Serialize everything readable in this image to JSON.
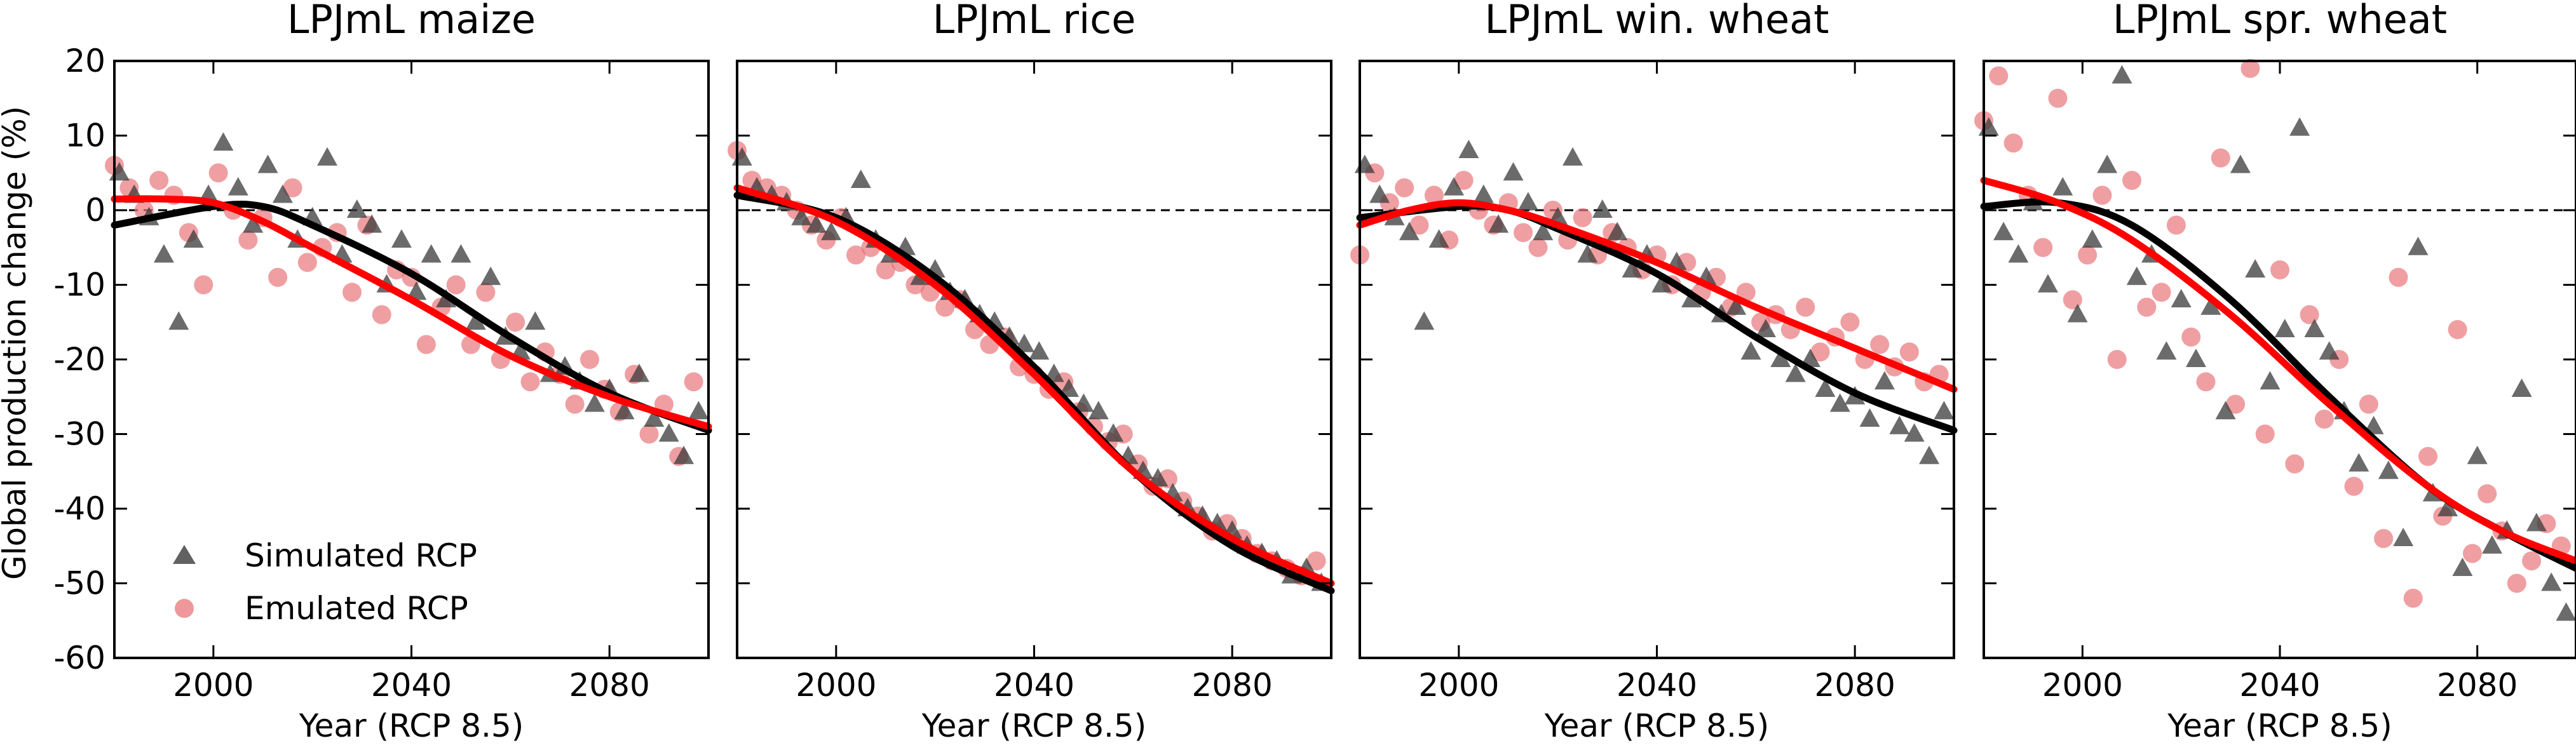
{
  "figure": {
    "ylabel": "Global production change (%)",
    "xlabel": "Year (RCP 8.5)",
    "legend": {
      "simulated": "Simulated RCP",
      "emulated": "Emulated RCP"
    },
    "colors": {
      "simulated": "#3a3a3a",
      "emulated": "#e8767a",
      "fit_simulated": "#000000",
      "fit_emulated": "#ff0000"
    }
  },
  "chart_data": [
    {
      "type": "scatter",
      "title": "LPJmL maize",
      "xlim": [
        1980,
        2100
      ],
      "ylim": [
        -60,
        20
      ],
      "xticks": [
        2000,
        2040,
        2080
      ],
      "yticks": [
        20,
        10,
        0,
        -10,
        -20,
        -30,
        -40,
        -50,
        -60
      ],
      "ytick_labels": [
        "20",
        "10",
        "0",
        "-10",
        "-20",
        "-30",
        "-40",
        "-50",
        "-60"
      ],
      "reference_line": 0,
      "legend_position": "lower-left",
      "series": [
        {
          "name": "Simulated RCP",
          "marker": "triangle",
          "fit": [
            [
              1980,
              -2
            ],
            [
              2000,
              0.5
            ],
            [
              2010,
              0.5
            ],
            [
              2020,
              -2
            ],
            [
              2040,
              -8.5
            ],
            [
              2060,
              -17
            ],
            [
              2080,
              -24.5
            ],
            [
              2100,
              -29.5
            ]
          ],
          "x": [
            1981,
            1984,
            1987,
            1990,
            1993,
            1996,
            1999,
            2002,
            2005,
            2008,
            2011,
            2014,
            2017,
            2020,
            2023,
            2026,
            2029,
            2032,
            2035,
            2038,
            2041,
            2044,
            2047,
            2050,
            2053,
            2056,
            2059,
            2062,
            2065,
            2068,
            2071,
            2074,
            2077,
            2080,
            2083,
            2086,
            2089,
            2092,
            2095,
            2098
          ],
          "y": [
            5,
            2,
            -1,
            -6,
            -15,
            -4,
            2,
            9,
            3,
            -2,
            6,
            2,
            -4,
            -1,
            7,
            -6,
            0,
            -2,
            -10,
            -4,
            -11,
            -6,
            -12,
            -6,
            -15,
            -9,
            -17,
            -19,
            -15,
            -22,
            -21,
            -23,
            -26,
            -24,
            -27,
            -22,
            -28,
            -30,
            -33,
            -27
          ]
        },
        {
          "name": "Emulated RCP",
          "marker": "circle",
          "fit": [
            [
              1980,
              1.5
            ],
            [
              1990,
              1.5
            ],
            [
              2000,
              1
            ],
            [
              2010,
              -1.5
            ],
            [
              2020,
              -5
            ],
            [
              2040,
              -12
            ],
            [
              2060,
              -19.5
            ],
            [
              2080,
              -25
            ],
            [
              2100,
              -29
            ]
          ],
          "x": [
            1980,
            1983,
            1986,
            1989,
            1992,
            1995,
            1998,
            2001,
            2004,
            2007,
            2010,
            2013,
            2016,
            2019,
            2022,
            2025,
            2028,
            2031,
            2034,
            2037,
            2040,
            2043,
            2046,
            2049,
            2052,
            2055,
            2058,
            2061,
            2064,
            2067,
            2070,
            2073,
            2076,
            2079,
            2082,
            2085,
            2088,
            2091,
            2094,
            2097
          ],
          "y": [
            6,
            3,
            0,
            4,
            2,
            -3,
            -10,
            5,
            0,
            -4,
            -1,
            -9,
            3,
            -7,
            -5,
            -3,
            -11,
            -2,
            -14,
            -8,
            -9,
            -18,
            -13,
            -10,
            -18,
            -11,
            -20,
            -15,
            -23,
            -19,
            -22,
            -26,
            -20,
            -24,
            -27,
            -22,
            -30,
            -26,
            -33,
            -23
          ]
        }
      ]
    },
    {
      "type": "scatter",
      "title": "LPJmL rice",
      "xlim": [
        1980,
        2100
      ],
      "ylim": [
        -60,
        20
      ],
      "xticks": [
        2000,
        2040,
        2080
      ],
      "yticks": [
        20,
        10,
        0,
        -10,
        -20,
        -30,
        -40,
        -50,
        -60
      ],
      "reference_line": 0,
      "series": [
        {
          "name": "Simulated RCP",
          "marker": "triangle",
          "fit": [
            [
              1980,
              2
            ],
            [
              2000,
              -1
            ],
            [
              2020,
              -9
            ],
            [
              2040,
              -21
            ],
            [
              2060,
              -35
            ],
            [
              2080,
              -45
            ],
            [
              2100,
              -51
            ]
          ],
          "x": [
            1981,
            1984,
            1987,
            1990,
            1993,
            1996,
            1999,
            2002,
            2005,
            2008,
            2011,
            2014,
            2017,
            2020,
            2023,
            2026,
            2029,
            2032,
            2035,
            2038,
            2041,
            2044,
            2047,
            2050,
            2053,
            2056,
            2059,
            2062,
            2065,
            2068,
            2071,
            2074,
            2077,
            2080,
            2083,
            2086,
            2089,
            2092,
            2095,
            2098
          ],
          "y": [
            7,
            3,
            2,
            1,
            -1,
            -2,
            -3,
            -1,
            4,
            -4,
            -6,
            -5,
            -9,
            -8,
            -11,
            -12,
            -14,
            -15,
            -17,
            -18,
            -19,
            -22,
            -24,
            -26,
            -27,
            -30,
            -33,
            -35,
            -36,
            -38,
            -40,
            -41,
            -42,
            -43,
            -45,
            -46,
            -47,
            -49,
            -48,
            -50
          ]
        },
        {
          "name": "Emulated RCP",
          "marker": "circle",
          "fit": [
            [
              1980,
              3
            ],
            [
              2000,
              -1.5
            ],
            [
              2020,
              -10
            ],
            [
              2040,
              -22
            ],
            [
              2060,
              -35
            ],
            [
              2080,
              -44
            ],
            [
              2100,
              -50
            ]
          ],
          "x": [
            1980,
            1983,
            1986,
            1989,
            1992,
            1995,
            1998,
            2001,
            2004,
            2007,
            2010,
            2013,
            2016,
            2019,
            2022,
            2025,
            2028,
            2031,
            2034,
            2037,
            2040,
            2043,
            2046,
            2049,
            2052,
            2055,
            2058,
            2061,
            2064,
            2067,
            2070,
            2073,
            2076,
            2079,
            2082,
            2085,
            2088,
            2091,
            2094,
            2097
          ],
          "y": [
            8,
            4,
            3,
            2,
            0,
            -2,
            -4,
            -1,
            -6,
            -5,
            -8,
            -7,
            -10,
            -11,
            -13,
            -12,
            -16,
            -18,
            -17,
            -21,
            -22,
            -24,
            -23,
            -27,
            -29,
            -31,
            -30,
            -34,
            -37,
            -36,
            -39,
            -41,
            -43,
            -42,
            -44,
            -46,
            -47,
            -48,
            -49,
            -47
          ]
        }
      ]
    },
    {
      "type": "scatter",
      "title": "LPJmL win. wheat",
      "xlim": [
        1980,
        2100
      ],
      "ylim": [
        -60,
        20
      ],
      "xticks": [
        2000,
        2040,
        2080
      ],
      "yticks": [
        20,
        10,
        0,
        -10,
        -20,
        -30,
        -40,
        -50,
        -60
      ],
      "reference_line": 0,
      "series": [
        {
          "name": "Simulated RCP",
          "marker": "triangle",
          "fit": [
            [
              1980,
              -1
            ],
            [
              2000,
              0.5
            ],
            [
              2010,
              0
            ],
            [
              2020,
              -2.5
            ],
            [
              2040,
              -8.5
            ],
            [
              2060,
              -17
            ],
            [
              2080,
              -24.5
            ],
            [
              2100,
              -29.5
            ]
          ],
          "x": [
            1981,
            1984,
            1987,
            1990,
            1993,
            1996,
            1999,
            2002,
            2005,
            2008,
            2011,
            2014,
            2017,
            2020,
            2023,
            2026,
            2029,
            2032,
            2035,
            2038,
            2041,
            2044,
            2047,
            2050,
            2053,
            2056,
            2059,
            2062,
            2065,
            2068,
            2071,
            2074,
            2077,
            2080,
            2083,
            2086,
            2089,
            2092,
            2095,
            2098
          ],
          "y": [
            6,
            2,
            -1,
            -3,
            -15,
            -4,
            3,
            8,
            2,
            -2,
            5,
            1,
            -3,
            -1,
            7,
            -6,
            0,
            -3,
            -8,
            -6,
            -10,
            -7,
            -12,
            -9,
            -14,
            -13,
            -19,
            -16,
            -20,
            -22,
            -20,
            -24,
            -26,
            -25,
            -28,
            -23,
            -29,
            -30,
            -33,
            -27
          ]
        },
        {
          "name": "Emulated RCP",
          "marker": "circle",
          "fit": [
            [
              1980,
              -2
            ],
            [
              1990,
              0
            ],
            [
              2000,
              1
            ],
            [
              2010,
              0
            ],
            [
              2020,
              -2
            ],
            [
              2040,
              -7
            ],
            [
              2060,
              -13
            ],
            [
              2080,
              -18.5
            ],
            [
              2100,
              -24
            ]
          ],
          "x": [
            1980,
            1983,
            1986,
            1989,
            1992,
            1995,
            1998,
            2001,
            2004,
            2007,
            2010,
            2013,
            2016,
            2019,
            2022,
            2025,
            2028,
            2031,
            2034,
            2037,
            2040,
            2043,
            2046,
            2049,
            2052,
            2055,
            2058,
            2061,
            2064,
            2067,
            2070,
            2073,
            2076,
            2079,
            2082,
            2085,
            2088,
            2091,
            2094,
            2097
          ],
          "y": [
            -6,
            5,
            1,
            3,
            -2,
            2,
            -4,
            4,
            0,
            -2,
            1,
            -3,
            -5,
            0,
            -4,
            -1,
            -6,
            -3,
            -5,
            -8,
            -6,
            -10,
            -7,
            -11,
            -9,
            -13,
            -11,
            -15,
            -14,
            -16,
            -13,
            -19,
            -17,
            -15,
            -20,
            -18,
            -21,
            -19,
            -23,
            -22
          ]
        }
      ]
    },
    {
      "type": "scatter",
      "title": "LPJmL spr. wheat",
      "xlim": [
        1980,
        2100
      ],
      "ylim": [
        -60,
        20
      ],
      "xticks": [
        2000,
        2040,
        2080
      ],
      "yticks": [
        20,
        10,
        0,
        -10,
        -20,
        -30,
        -40,
        -50,
        -60
      ],
      "reference_line": 0,
      "series": [
        {
          "name": "Simulated RCP",
          "marker": "triangle",
          "fit": [
            [
              1980,
              0.5
            ],
            [
              1995,
              1
            ],
            [
              2010,
              -2
            ],
            [
              2030,
              -12
            ],
            [
              2050,
              -25
            ],
            [
              2070,
              -37
            ],
            [
              2085,
              -43
            ],
            [
              2100,
              -48
            ]
          ],
          "x": [
            1981,
            1984,
            1987,
            1990,
            1993,
            1996,
            1999,
            2002,
            2005,
            2008,
            2011,
            2014,
            2017,
            2020,
            2023,
            2026,
            2029,
            2032,
            2035,
            2038,
            2041,
            2044,
            2047,
            2050,
            2053,
            2056,
            2059,
            2062,
            2065,
            2068,
            2071,
            2074,
            2077,
            2080,
            2083,
            2086,
            2089,
            2092,
            2095,
            2098
          ],
          "y": [
            11,
            -3,
            -6,
            1,
            -10,
            3,
            -14,
            -4,
            6,
            18,
            -9,
            -6,
            -19,
            -12,
            -20,
            -13,
            -27,
            6,
            -8,
            -23,
            -16,
            11,
            -16,
            -19,
            -27,
            -34,
            -29,
            -35,
            -44,
            -5,
            -38,
            -40,
            -48,
            -33,
            -45,
            -43,
            -24,
            -42,
            -50,
            -54
          ]
        },
        {
          "name": "Emulated RCP",
          "marker": "circle",
          "fit": [
            [
              1980,
              4
            ],
            [
              1995,
              1
            ],
            [
              2010,
              -4
            ],
            [
              2030,
              -14
            ],
            [
              2050,
              -26
            ],
            [
              2070,
              -37
            ],
            [
              2085,
              -43
            ],
            [
              2100,
              -47
            ]
          ],
          "x": [
            1980,
            1983,
            1986,
            1989,
            1992,
            1995,
            1998,
            2001,
            2004,
            2007,
            2010,
            2013,
            2016,
            2019,
            2022,
            2025,
            2028,
            2031,
            2034,
            2037,
            2040,
            2043,
            2046,
            2049,
            2052,
            2055,
            2058,
            2061,
            2064,
            2067,
            2070,
            2073,
            2076,
            2079,
            2082,
            2085,
            2088,
            2091,
            2094,
            2097
          ],
          "y": [
            12,
            18,
            9,
            2,
            -5,
            15,
            -12,
            -6,
            2,
            -20,
            4,
            -13,
            -11,
            -2,
            -17,
            -23,
            7,
            -26,
            19,
            -30,
            -8,
            -34,
            -14,
            -28,
            -20,
            -37,
            -26,
            -44,
            -9,
            -52,
            -33,
            -41,
            -16,
            -46,
            -38,
            -43,
            -50,
            -47,
            -42,
            -45
          ]
        }
      ]
    }
  ]
}
